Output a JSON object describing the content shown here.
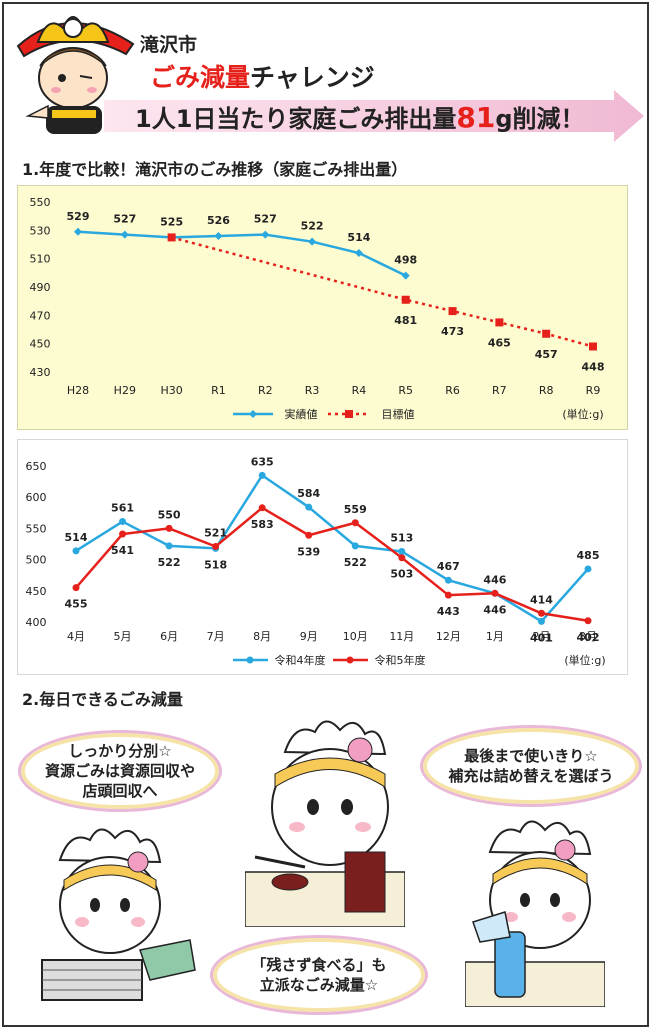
{
  "header": {
    "city": "滝沢市",
    "headline_red": "ごみ減量",
    "headline_rest": "チャレンジ",
    "banner_prefix": "1人1日当たり家庭ごみ排出量",
    "banner_number": "81",
    "banner_suffix": "g削減！"
  },
  "section1": {
    "title": "1.年度で比較！滝沢市のごみ推移（家庭ごみ排出量）"
  },
  "section2": {
    "title": "2.毎日できるごみ減量"
  },
  "bubbles": {
    "sort": [
      "しっかり分別☆",
      "資源ごみは資源回収や",
      "店頭回収へ"
    ],
    "use_up": [
      "最後まで使いきり☆",
      "補充は詰め替えを選ぼう"
    ],
    "no_leftovers": [
      "「残さず食べる」も",
      "立派なごみ減量☆"
    ]
  },
  "colors": {
    "accent_red": "#e6201a",
    "series_blue": "#29a8e0",
    "series_red": "#e6201a",
    "banner_pink": "#f3c8dd"
  },
  "chart_data": [
    {
      "type": "line",
      "title": "",
      "x": [
        "H28",
        "H29",
        "H30",
        "R1",
        "R2",
        "R3",
        "R4",
        "R5",
        "R6",
        "R7",
        "R8",
        "R9"
      ],
      "ylim": [
        430,
        550
      ],
      "yticks": [
        430,
        450,
        470,
        490,
        510,
        530,
        550
      ],
      "unit": "(単位:g)",
      "series": [
        {
          "name": "実績値",
          "values": [
            529,
            527,
            525,
            526,
            527,
            522,
            514,
            498,
            null,
            null,
            null,
            null
          ],
          "color": "#29a8e0",
          "style": "solid-diamond"
        },
        {
          "name": "目標値",
          "values": [
            null,
            null,
            525,
            null,
            null,
            null,
            null,
            481,
            473,
            465,
            457,
            448
          ],
          "color": "#e6201a",
          "style": "dotted-square"
        }
      ],
      "labels": {
        "実績値": [
          "529",
          "527",
          "525",
          "526",
          "527",
          "522",
          "514",
          "498"
        ],
        "目標値": [
          "481",
          "473",
          "465",
          "457",
          "448"
        ]
      },
      "legend": "bottom",
      "grid": false
    },
    {
      "type": "line",
      "title": "",
      "x": [
        "4月",
        "5月",
        "6月",
        "7月",
        "8月",
        "9月",
        "10月",
        "11月",
        "12月",
        "1月",
        "2月",
        "3月"
      ],
      "ylim": [
        400,
        650
      ],
      "yticks": [
        400,
        450,
        500,
        550,
        600,
        650
      ],
      "unit": "(単位:g)",
      "series": [
        {
          "name": "令和4年度",
          "values": [
            514,
            561,
            522,
            518,
            635,
            584,
            522,
            513,
            467,
            446,
            401,
            485
          ],
          "color": "#29a8e0"
        },
        {
          "name": "令和5年度",
          "values": [
            455,
            541,
            550,
            521,
            583,
            539,
            559,
            503,
            443,
            446,
            414,
            402
          ],
          "color": "#e6201a"
        }
      ],
      "legend": "bottom",
      "grid": false
    }
  ]
}
